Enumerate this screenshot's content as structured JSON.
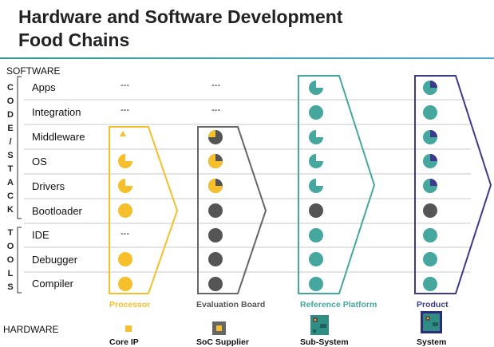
{
  "title_line1": "Hardware and Software Development",
  "title_line2": "Food Chains",
  "software_label": "SOFTWARE",
  "hardware_label": "HARDWARE",
  "code_stack_letters": [
    "C",
    "O",
    "D",
    "E",
    "/",
    "S",
    "T",
    "A",
    "C",
    "K"
  ],
  "tools_letters": [
    "T",
    "O",
    "O",
    "L",
    "S"
  ],
  "rows": [
    "Apps",
    "Integration",
    "Middleware",
    "OS",
    "Drivers",
    "Bootloader",
    "IDE",
    "Debugger",
    "Compiler"
  ],
  "dash": "---",
  "columns": [
    {
      "name": "Processor",
      "color": "#f6bf2c",
      "icon_label": "Core IP"
    },
    {
      "name": "Evaluation Board",
      "color": "#666666",
      "icon_label": "SoC Supplier"
    },
    {
      "name": "Reference Platform",
      "color": "#45a79e",
      "icon_label": "Sub-System"
    },
    {
      "name": "Product",
      "color": "#3b3a8e",
      "icon_label": "System"
    }
  ]
}
